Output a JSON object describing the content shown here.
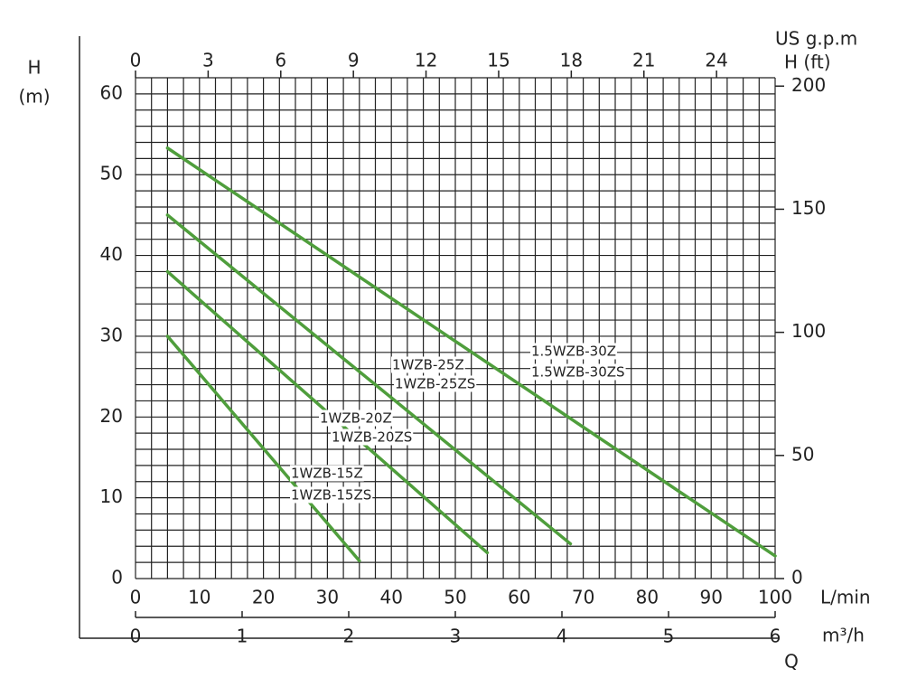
{
  "chart_data": {
    "type": "line",
    "ylabel": "H",
    "ylabel_unit": "(m)",
    "y2label": "H (ft)",
    "x2label": "US g.p.m",
    "xlabel": "L/min",
    "x3label": "m³/h",
    "qlabel": "Q",
    "xlim": [
      0,
      100
    ],
    "xticks": [
      0,
      10,
      20,
      30,
      40,
      50,
      60,
      70,
      80,
      90,
      100
    ],
    "ylim": [
      0,
      62
    ],
    "yticks": [
      0,
      10,
      20,
      30,
      40,
      50,
      60
    ],
    "y2lim": [
      0,
      203.4
    ],
    "y2ticks": [
      0,
      50,
      100,
      150,
      200
    ],
    "x2lim": [
      0,
      26.42
    ],
    "x2ticks": [
      0,
      3,
      6,
      9,
      12,
      15,
      18,
      21,
      24
    ],
    "x3lim": [
      0,
      6
    ],
    "x3ticks": [
      0,
      1,
      2,
      3,
      4,
      5,
      6
    ],
    "grid": {
      "x_step": 2.5,
      "y_step": 2
    },
    "series": [
      {
        "name": "1.5WZB-30Z",
        "name2": "1.5WZB-30ZS",
        "color": "#4f9e3c",
        "x": [
          5,
          100
        ],
        "values": [
          53.3,
          2.8
        ]
      },
      {
        "name": "1WZB-25Z",
        "name2": "1WZB-25ZS",
        "color": "#4f9e3c",
        "x": [
          5,
          68
        ],
        "values": [
          45,
          4.3
        ]
      },
      {
        "name": "1WZB-20Z",
        "name2": "1WZB-20ZS",
        "color": "#4f9e3c",
        "x": [
          5,
          55
        ],
        "values": [
          38,
          3.2
        ]
      },
      {
        "name": "1WZB-15Z",
        "name2": "1WZB-15ZS",
        "color": "#4f9e3c",
        "x": [
          5,
          35
        ],
        "values": [
          30,
          2.2
        ]
      }
    ]
  }
}
